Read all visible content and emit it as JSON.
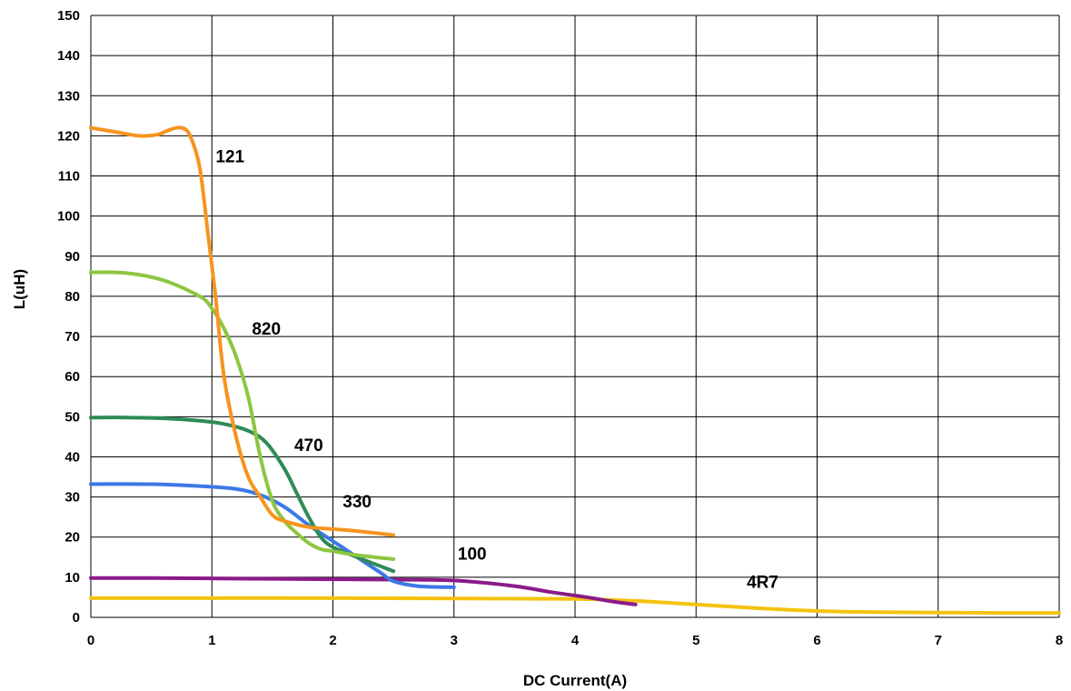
{
  "chart_data": {
    "type": "line",
    "xlabel": "DC Current(A)",
    "ylabel": "L(uH)",
    "xlim": [
      0,
      8
    ],
    "ylim": [
      0,
      150
    ],
    "x_ticks": [
      0,
      1,
      2,
      3,
      4,
      5,
      6,
      7,
      8
    ],
    "y_ticks": [
      0,
      10,
      20,
      30,
      40,
      50,
      60,
      70,
      80,
      90,
      100,
      110,
      120,
      130,
      140,
      150
    ],
    "grid": true,
    "legend": "none",
    "series": [
      {
        "name": "121",
        "color": "#f7941d",
        "label_pos": [
          1.15,
          115
        ],
        "points": [
          [
            0,
            122
          ],
          [
            0.2,
            121
          ],
          [
            0.4,
            120
          ],
          [
            0.55,
            120.3
          ],
          [
            0.65,
            121.5
          ],
          [
            0.75,
            122
          ],
          [
            0.82,
            120
          ],
          [
            0.9,
            112
          ],
          [
            0.97,
            95
          ],
          [
            1.03,
            80
          ],
          [
            1.1,
            60
          ],
          [
            1.2,
            45
          ],
          [
            1.3,
            35
          ],
          [
            1.4,
            30
          ],
          [
            1.5,
            25.5
          ],
          [
            1.6,
            24
          ],
          [
            1.8,
            22.5
          ],
          [
            2.0,
            22
          ],
          [
            2.2,
            21.5
          ],
          [
            2.5,
            20.5
          ]
        ]
      },
      {
        "name": "820",
        "color": "#8dc63f",
        "label_pos": [
          1.45,
          72
        ],
        "points": [
          [
            0,
            86
          ],
          [
            0.3,
            85.8
          ],
          [
            0.6,
            84
          ],
          [
            0.9,
            80
          ],
          [
            1.0,
            77
          ],
          [
            1.1,
            72
          ],
          [
            1.2,
            65
          ],
          [
            1.3,
            55
          ],
          [
            1.4,
            40
          ],
          [
            1.5,
            29
          ],
          [
            1.6,
            24
          ],
          [
            1.7,
            21
          ],
          [
            1.8,
            18.5
          ],
          [
            1.9,
            17
          ],
          [
            2.0,
            16.5
          ],
          [
            2.2,
            15.5
          ],
          [
            2.5,
            14.5
          ]
        ]
      },
      {
        "name": "470",
        "color": "#2e8b57",
        "label_pos": [
          1.8,
          43
        ],
        "points": [
          [
            0,
            49.8
          ],
          [
            0.3,
            49.8
          ],
          [
            0.6,
            49.6
          ],
          [
            0.9,
            49
          ],
          [
            1.1,
            48.2
          ],
          [
            1.3,
            46.5
          ],
          [
            1.45,
            43.5
          ],
          [
            1.6,
            37
          ],
          [
            1.7,
            31
          ],
          [
            1.8,
            25
          ],
          [
            1.9,
            20
          ],
          [
            2.0,
            17.5
          ],
          [
            2.2,
            15
          ],
          [
            2.5,
            11.5
          ]
        ]
      },
      {
        "name": "330",
        "color": "#3c78e6",
        "label_pos": [
          2.2,
          29
        ],
        "points": [
          [
            0,
            33.2
          ],
          [
            0.5,
            33.2
          ],
          [
            0.9,
            32.7
          ],
          [
            1.2,
            32
          ],
          [
            1.4,
            30.5
          ],
          [
            1.6,
            27.5
          ],
          [
            1.8,
            23
          ],
          [
            2.0,
            19
          ],
          [
            2.2,
            15
          ],
          [
            2.4,
            11
          ],
          [
            2.5,
            9
          ],
          [
            2.7,
            7.8
          ],
          [
            3.0,
            7.5
          ]
        ]
      },
      {
        "name": "100",
        "color": "#8b1a89",
        "label_pos": [
          3.15,
          16
        ],
        "points": [
          [
            0,
            9.8
          ],
          [
            0.5,
            9.8
          ],
          [
            1.0,
            9.7
          ],
          [
            1.5,
            9.6
          ],
          [
            2.0,
            9.5
          ],
          [
            2.5,
            9.4
          ],
          [
            3.0,
            9.2
          ],
          [
            3.5,
            7.8
          ],
          [
            3.8,
            6.3
          ],
          [
            4.1,
            5
          ],
          [
            4.3,
            4
          ],
          [
            4.5,
            3.2
          ]
        ]
      },
      {
        "name": "4R7",
        "color": "#f4c20d",
        "label_pos": [
          5.55,
          9
        ],
        "points": [
          [
            0,
            4.8
          ],
          [
            1,
            4.8
          ],
          [
            2,
            4.8
          ],
          [
            3,
            4.7
          ],
          [
            4,
            4.6
          ],
          [
            4.5,
            4.1
          ],
          [
            5,
            3.2
          ],
          [
            5.5,
            2.3
          ],
          [
            6,
            1.6
          ],
          [
            6.5,
            1.3
          ],
          [
            7,
            1.2
          ],
          [
            7.5,
            1.1
          ],
          [
            8,
            1.1
          ]
        ]
      }
    ]
  }
}
